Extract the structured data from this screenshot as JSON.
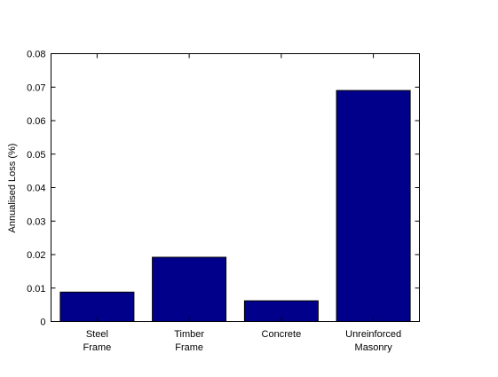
{
  "chart_data": {
    "type": "bar",
    "categories": [
      [
        "Steel",
        "Frame"
      ],
      [
        "Timber",
        "Frame"
      ],
      [
        "Concrete"
      ],
      [
        "Unreinforced",
        "Masonry"
      ]
    ],
    "values": [
      0.0088,
      0.0192,
      0.0062,
      0.069
    ],
    "ylabel": "Annualised Loss (%)",
    "xlabel": "",
    "title": "",
    "ylim": [
      0,
      0.08
    ],
    "yticks": [
      "0",
      "0.01",
      "0.02",
      "0.03",
      "0.04",
      "0.05",
      "0.06",
      "0.07",
      "0.08"
    ],
    "bar_color": "#00008b",
    "grid": false,
    "legend": "none"
  }
}
